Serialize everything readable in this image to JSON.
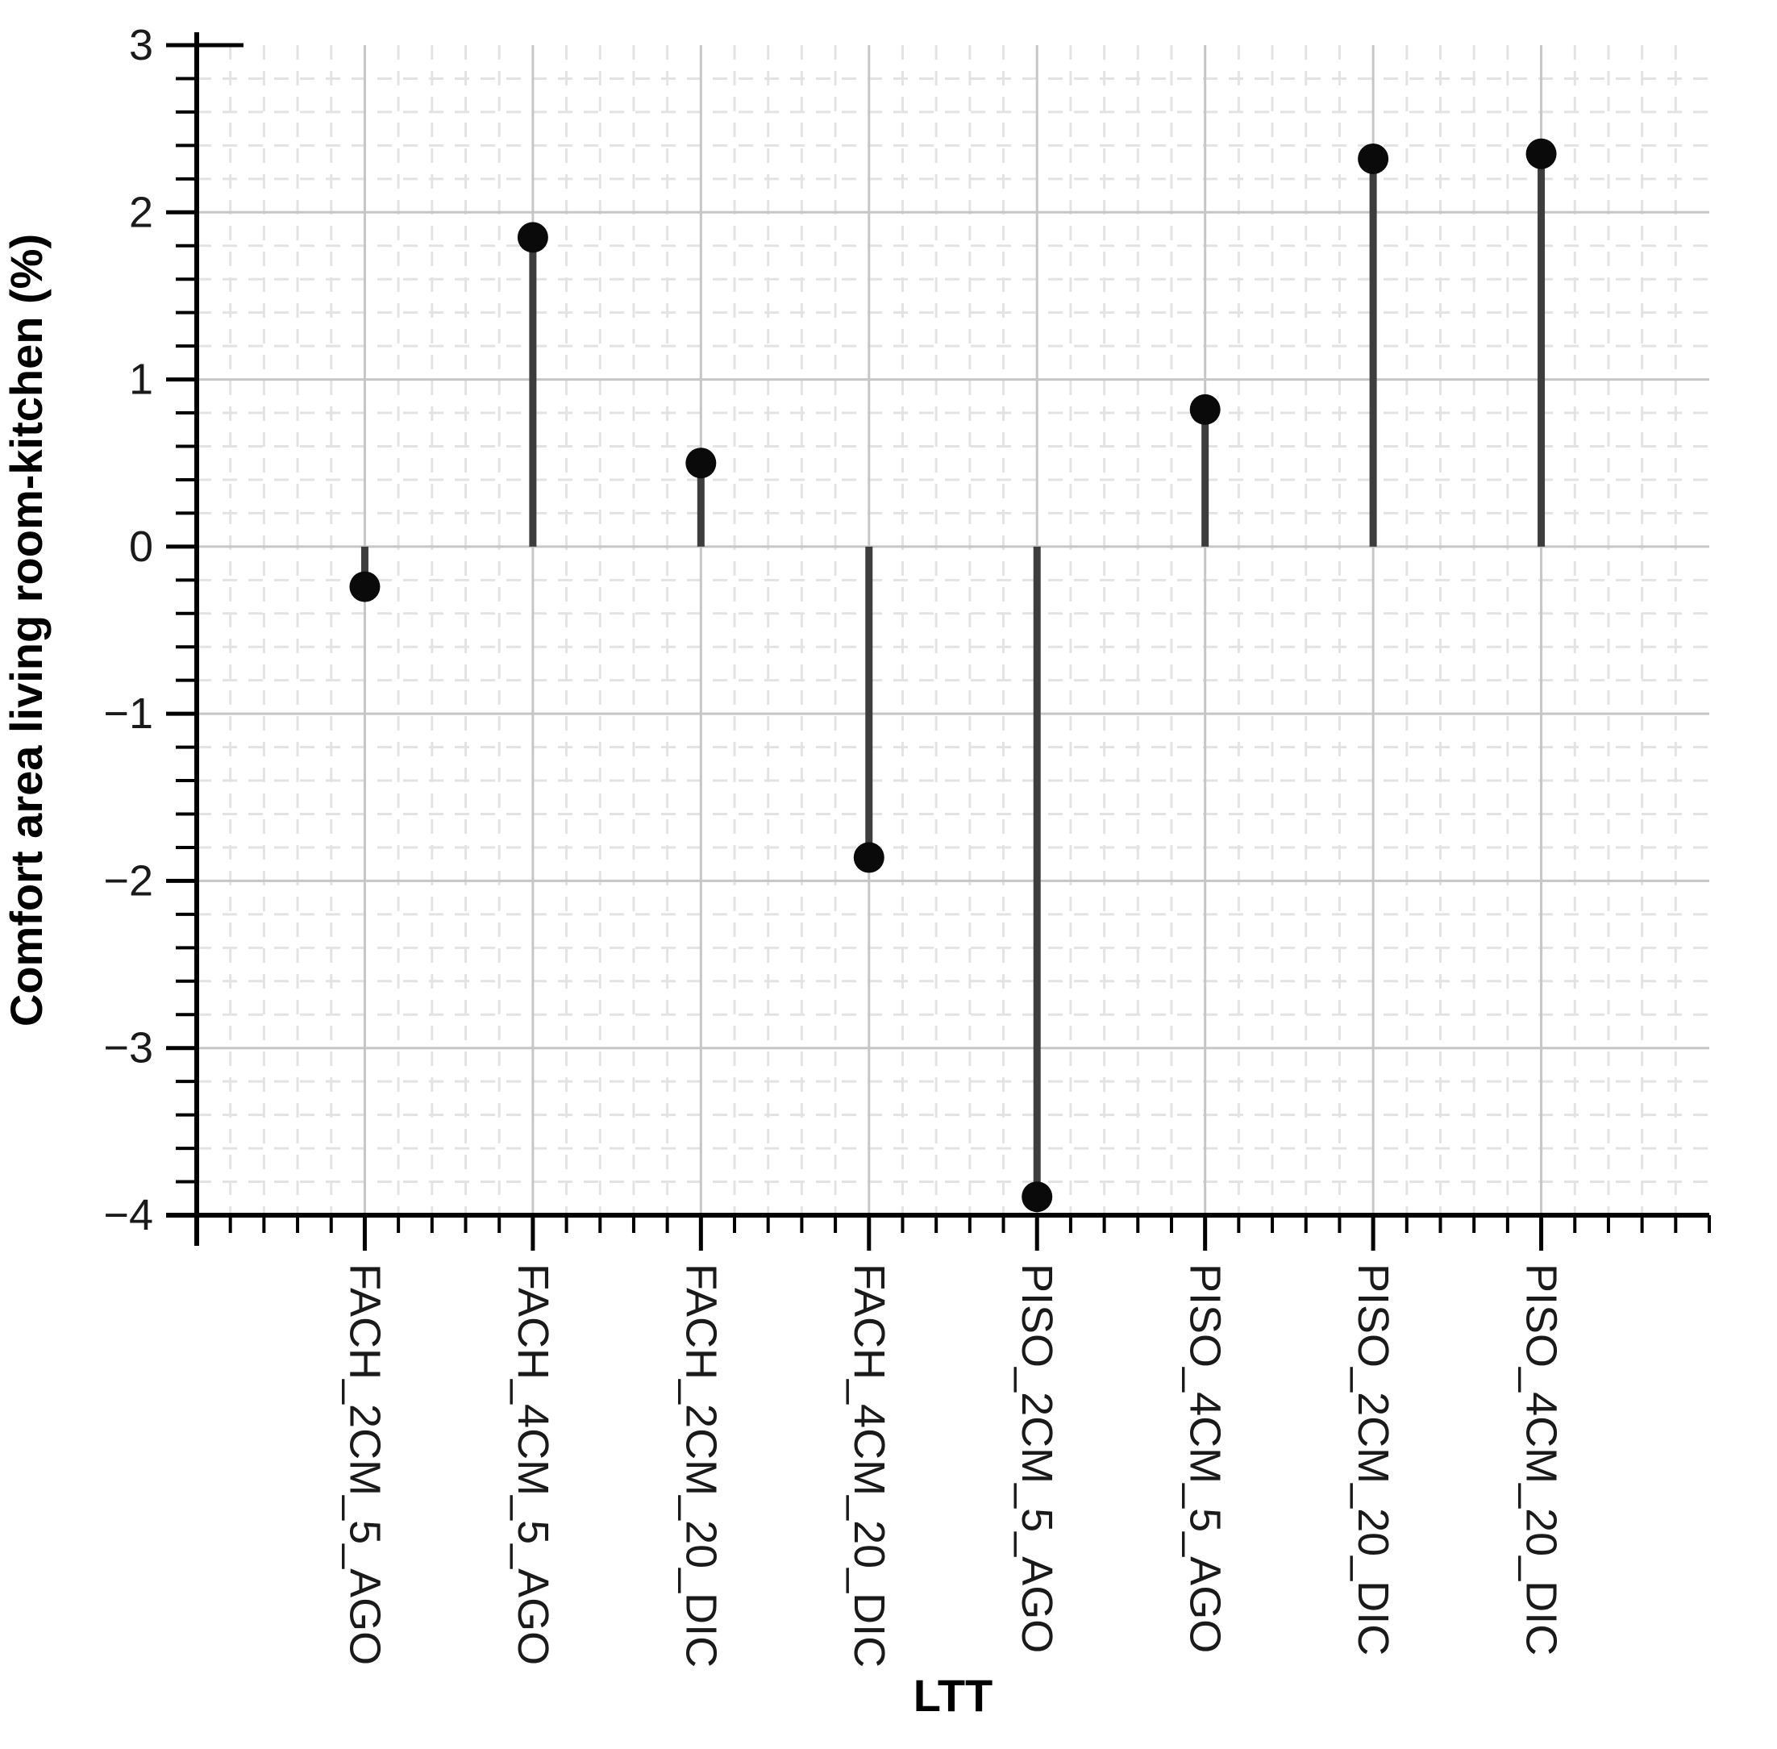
{
  "figure": {
    "xlabel": "LTT",
    "ylabel": "Comfort area living room-kitchen (%)"
  },
  "chart_data": {
    "type": "stem",
    "title": "",
    "xlabel": "LTT",
    "ylabel": "Comfort area living room-kitchen (%)",
    "categories": [
      "FACH_2CM_5_AGO",
      "FACH_4CM_5_AGO",
      "FACH_2CM_20_DIC",
      "FACH_4CM_20_DIC",
      "PISO_2CM_5_AGO",
      "PISO_4CM_5_AGO",
      "PISO_2CM_20_DIC",
      "PISO_4CM_20_DIC"
    ],
    "values": [
      -0.24,
      1.85,
      0.5,
      -1.86,
      -3.89,
      0.82,
      2.32,
      2.35
    ],
    "baseline": 0,
    "ylim": [
      -4,
      3
    ],
    "yticks_major": [
      3,
      2,
      1,
      0,
      -1,
      -2,
      -3,
      -4
    ],
    "y_minor_step": 0.2,
    "x_minor_divisions": 5,
    "grid": "major solid + minor dashed",
    "legend": "none",
    "marker": "filled-circle",
    "colors": {
      "stem": "#3d3d3d",
      "marker": "#0a0a0a",
      "grid_major": "#c6c6c6",
      "grid_minor": "#e3e3e3",
      "axis": "#000000",
      "text": "#1a1a1a"
    }
  }
}
